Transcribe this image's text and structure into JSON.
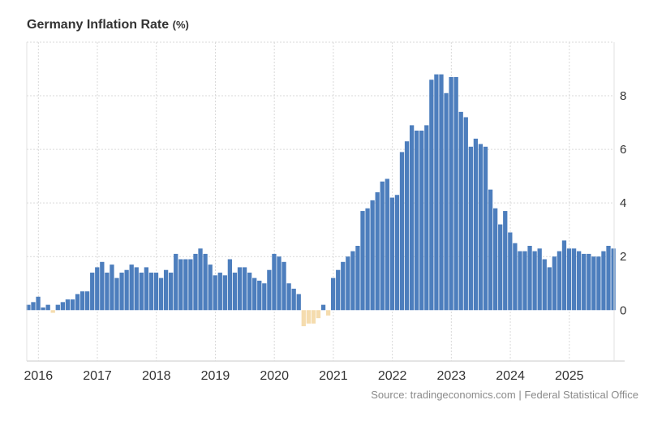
{
  "chart_data": {
    "type": "bar",
    "title": "Germany Inflation Rate",
    "unit_label": "(%)",
    "source": "Source: tradingeconomics.com | Federal Statistical Office",
    "x": [
      "2015-11",
      "2015-12",
      "2016-01",
      "2016-02",
      "2016-03",
      "2016-04",
      "2016-05",
      "2016-06",
      "2016-07",
      "2016-08",
      "2016-09",
      "2016-10",
      "2016-11",
      "2016-12",
      "2017-01",
      "2017-02",
      "2017-03",
      "2017-04",
      "2017-05",
      "2017-06",
      "2017-07",
      "2017-08",
      "2017-09",
      "2017-10",
      "2017-11",
      "2017-12",
      "2018-01",
      "2018-02",
      "2018-03",
      "2018-04",
      "2018-05",
      "2018-06",
      "2018-07",
      "2018-08",
      "2018-09",
      "2018-10",
      "2018-11",
      "2018-12",
      "2019-01",
      "2019-02",
      "2019-03",
      "2019-04",
      "2019-05",
      "2019-06",
      "2019-07",
      "2019-08",
      "2019-09",
      "2019-10",
      "2019-11",
      "2019-12",
      "2020-01",
      "2020-02",
      "2020-03",
      "2020-04",
      "2020-05",
      "2020-06",
      "2020-07",
      "2020-08",
      "2020-09",
      "2020-10",
      "2020-11",
      "2020-12",
      "2021-01",
      "2021-02",
      "2021-03",
      "2021-04",
      "2021-05",
      "2021-06",
      "2021-07",
      "2021-08",
      "2021-09",
      "2021-10",
      "2021-11",
      "2021-12",
      "2022-01",
      "2022-02",
      "2022-03",
      "2022-04",
      "2022-05",
      "2022-06",
      "2022-07",
      "2022-08",
      "2022-09",
      "2022-10",
      "2022-11",
      "2022-12",
      "2023-01",
      "2023-02",
      "2023-03",
      "2023-04",
      "2023-05",
      "2023-06",
      "2023-07",
      "2023-08",
      "2023-09",
      "2023-10",
      "2023-11",
      "2023-12",
      "2024-01",
      "2024-02",
      "2024-03",
      "2024-04",
      "2024-05",
      "2024-06",
      "2024-07",
      "2024-08",
      "2024-09",
      "2024-10",
      "2024-11",
      "2024-12",
      "2025-01",
      "2025-02",
      "2025-03",
      "2025-04",
      "2025-05",
      "2025-06",
      "2025-07",
      "2025-08",
      "2025-09",
      "2025-10"
    ],
    "values": [
      0.2,
      0.3,
      0.5,
      0.1,
      0.2,
      -0.1,
      0.2,
      0.3,
      0.4,
      0.4,
      0.6,
      0.7,
      0.7,
      1.4,
      1.6,
      1.8,
      1.4,
      1.7,
      1.2,
      1.4,
      1.5,
      1.7,
      1.6,
      1.4,
      1.6,
      1.4,
      1.4,
      1.2,
      1.5,
      1.4,
      2.1,
      1.9,
      1.9,
      1.9,
      2.1,
      2.3,
      2.1,
      1.7,
      1.3,
      1.4,
      1.3,
      1.9,
      1.4,
      1.6,
      1.6,
      1.4,
      1.2,
      1.1,
      1.0,
      1.5,
      2.1,
      2.0,
      1.8,
      1.0,
      0.8,
      0.6,
      -0.6,
      -0.5,
      -0.5,
      -0.3,
      0.2,
      -0.2,
      1.2,
      1.5,
      1.8,
      2.0,
      2.2,
      2.4,
      3.7,
      3.8,
      4.1,
      4.4,
      4.8,
      4.9,
      4.2,
      4.3,
      5.9,
      6.3,
      6.9,
      6.7,
      6.7,
      6.9,
      8.6,
      8.8,
      8.8,
      8.1,
      8.7,
      8.7,
      7.4,
      7.2,
      6.1,
      6.4,
      6.2,
      6.1,
      4.5,
      3.8,
      3.2,
      3.7,
      2.9,
      2.5,
      2.2,
      2.2,
      2.4,
      2.2,
      2.3,
      1.9,
      1.6,
      2.0,
      2.2,
      2.6,
      2.3,
      2.3,
      2.2,
      2.1,
      2.1,
      2.0,
      2.0,
      2.2,
      2.4,
      2.3
    ],
    "x_tick_labels": [
      "2016",
      "2017",
      "2018",
      "2019",
      "2020",
      "2021",
      "2022",
      "2023",
      "2024",
      "2025"
    ],
    "y_tick_labels": [
      "0",
      "2",
      "4",
      "6",
      "8"
    ],
    "ylim": [
      -1.9,
      10
    ],
    "y_axis_side": "right",
    "grid": true,
    "colors": {
      "positive": "#4d7ebd",
      "negative": "#f5dcae"
    }
  }
}
